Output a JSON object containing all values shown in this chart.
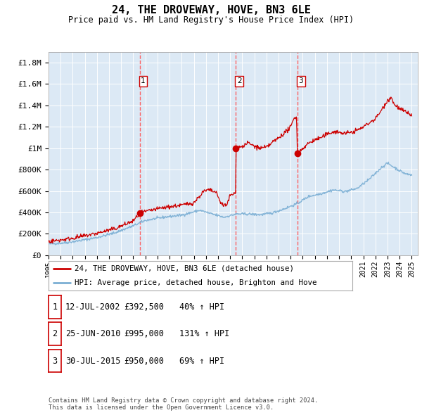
{
  "title": "24, THE DROVEWAY, HOVE, BN3 6LE",
  "subtitle": "Price paid vs. HM Land Registry's House Price Index (HPI)",
  "background_color": "#dce9f5",
  "plot_bg_color": "#dce9f5",
  "red_line_color": "#cc0000",
  "blue_line_color": "#7bafd4",
  "sale_marker_color": "#cc0000",
  "dashed_line_color": "#ff5555",
  "ylim": [
    0,
    1900000
  ],
  "yticks": [
    0,
    200000,
    400000,
    600000,
    800000,
    1000000,
    1200000,
    1400000,
    1600000,
    1800000
  ],
  "ytick_labels": [
    "£0",
    "£200K",
    "£400K",
    "£600K",
    "£800K",
    "£1M",
    "£1.2M",
    "£1.4M",
    "£1.6M",
    "£1.8M"
  ],
  "xmin": 1995.0,
  "xmax": 2025.5,
  "sales": [
    {
      "label": "1",
      "date_num": 2002.54,
      "price": 392500,
      "pct": "40%",
      "date_str": "12-JUL-2002"
    },
    {
      "label": "2",
      "date_num": 2010.48,
      "price": 995000,
      "pct": "131%",
      "date_str": "25-JUN-2010"
    },
    {
      "label": "3",
      "date_num": 2015.58,
      "price": 950000,
      "pct": "69%",
      "date_str": "30-JUL-2015"
    }
  ],
  "legend_line1": "24, THE DROVEWAY, HOVE, BN3 6LE (detached house)",
  "legend_line2": "HPI: Average price, detached house, Brighton and Hove",
  "table_rows": [
    [
      "1",
      "12-JUL-2002",
      "£392,500",
      "40% ↑ HPI"
    ],
    [
      "2",
      "25-JUN-2010",
      "£995,000",
      "131% ↑ HPI"
    ],
    [
      "3",
      "30-JUL-2015",
      "£950,000",
      "69% ↑ HPI"
    ]
  ],
  "footnote": "Contains HM Land Registry data © Crown copyright and database right 2024.\nThis data is licensed under the Open Government Licence v3.0.",
  "grid_color": "#ffffff",
  "title_fontsize": 11,
  "subtitle_fontsize": 9
}
